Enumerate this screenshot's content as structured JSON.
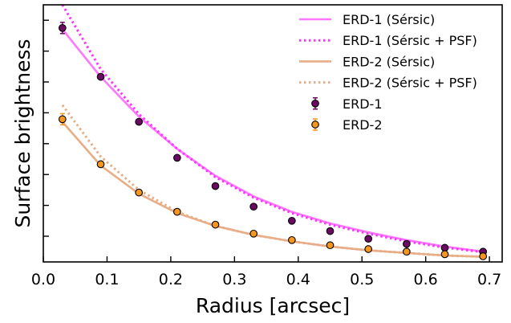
{
  "chart_data": {
    "type": "line",
    "xlabel": "Radius [arcsec]",
    "ylabel": "Surface brightness",
    "xlim": [
      0.0,
      0.72
    ],
    "ylim": [
      0.0,
      1.0
    ],
    "x_ticks": [
      0.0,
      0.1,
      0.2,
      0.3,
      0.4,
      0.5,
      0.6,
      0.7
    ],
    "x_tick_labels": [
      "0.0",
      "0.1",
      "0.2",
      "0.3",
      "0.4",
      "0.5",
      "0.6",
      "0.7"
    ],
    "y_ticks": [
      0.1,
      0.22,
      0.34,
      0.46,
      0.58,
      0.7,
      0.82,
      0.94
    ],
    "legend_position": "top-right",
    "grid": false,
    "series": [
      {
        "name": "ERD-1 (Sérsic)",
        "kind": "line",
        "style": "solid",
        "color": "#ff77ff",
        "x": [
          0.03,
          0.09,
          0.15,
          0.21,
          0.27,
          0.33,
          0.39,
          0.45,
          0.51,
          0.57,
          0.63,
          0.69
        ],
        "y": [
          0.905,
          0.72,
          0.565,
          0.44,
          0.335,
          0.255,
          0.195,
          0.15,
          0.115,
          0.085,
          0.06,
          0.04
        ]
      },
      {
        "name": "ERD-1 (Sérsic + PSF)",
        "kind": "line",
        "style": "dotted",
        "color": "#ff33ff",
        "x": [
          0.03,
          0.09,
          0.15,
          0.21,
          0.27,
          0.33,
          0.39,
          0.45,
          0.51,
          0.57,
          0.63,
          0.69
        ],
        "y": [
          1.0,
          0.75,
          0.575,
          0.44,
          0.33,
          0.25,
          0.19,
          0.145,
          0.11,
          0.08,
          0.056,
          0.038
        ]
      },
      {
        "name": "ERD-2 (Sérsic)",
        "kind": "line",
        "style": "solid",
        "color": "#e8ad86",
        "x": [
          0.03,
          0.09,
          0.15,
          0.21,
          0.27,
          0.33,
          0.39,
          0.45,
          0.51,
          0.57,
          0.63,
          0.69
        ],
        "y": [
          0.545,
          0.375,
          0.265,
          0.19,
          0.14,
          0.105,
          0.08,
          0.06,
          0.045,
          0.035,
          0.025,
          0.02
        ]
      },
      {
        "name": "ERD-2 (Sérsic + PSF)",
        "kind": "line",
        "style": "dotted",
        "color": "#e8ad86",
        "x": [
          0.03,
          0.09,
          0.15,
          0.21,
          0.27,
          0.33,
          0.39,
          0.45,
          0.51,
          0.57,
          0.63,
          0.69
        ],
        "y": [
          0.61,
          0.41,
          0.28,
          0.195,
          0.14,
          0.105,
          0.08,
          0.06,
          0.045,
          0.035,
          0.025,
          0.02
        ]
      },
      {
        "name": "ERD-1",
        "kind": "points",
        "color": "#6b0a63",
        "x": [
          0.03,
          0.09,
          0.15,
          0.21,
          0.27,
          0.33,
          0.39,
          0.45,
          0.51,
          0.57,
          0.63,
          0.69
        ],
        "y": [
          0.91,
          0.72,
          0.545,
          0.405,
          0.295,
          0.215,
          0.16,
          0.12,
          0.09,
          0.07,
          0.055,
          0.04
        ]
      },
      {
        "name": "ERD-2",
        "kind": "points",
        "color": "#f5961e",
        "x": [
          0.03,
          0.09,
          0.15,
          0.21,
          0.27,
          0.33,
          0.39,
          0.45,
          0.51,
          0.57,
          0.63,
          0.69
        ],
        "y": [
          0.555,
          0.38,
          0.27,
          0.195,
          0.145,
          0.11,
          0.085,
          0.065,
          0.05,
          0.04,
          0.03,
          0.022
        ]
      }
    ]
  }
}
